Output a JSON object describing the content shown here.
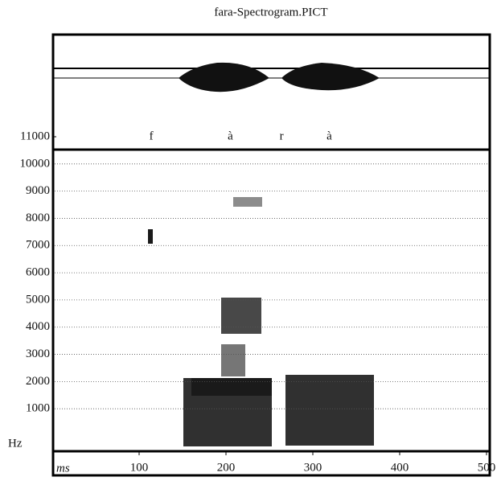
{
  "chart_data": {
    "type": "spectrogram",
    "title": "fara-Spectrogram.PICT",
    "x_label": "ms",
    "y_label": "Hz",
    "xlim": [
      0,
      500
    ],
    "xticks": [
      100,
      200,
      300,
      400,
      500
    ],
    "ylim": [
      0,
      11000
    ],
    "yticks": [
      1000,
      2000,
      3000,
      4000,
      5000,
      6000,
      7000,
      8000,
      9000,
      10000,
      11000
    ],
    "grid": true,
    "annotations": [
      {
        "text": "f",
        "x": 114
      },
      {
        "text": "à",
        "x": 205
      },
      {
        "text": "r",
        "x": 264
      },
      {
        "text": "à",
        "x": 319
      }
    ]
  }
}
